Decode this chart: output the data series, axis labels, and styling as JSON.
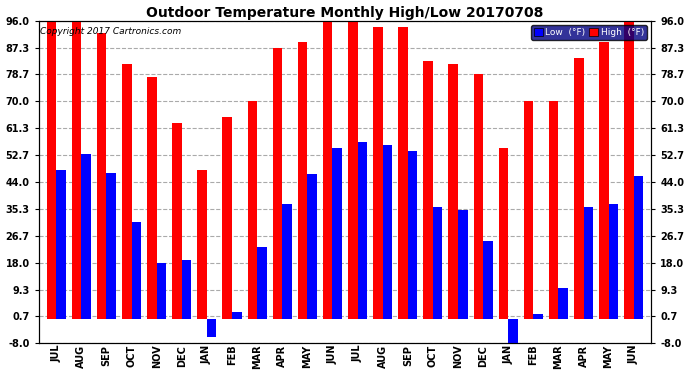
{
  "title": "Outdoor Temperature Monthly High/Low 20170708",
  "copyright": "Copyright 2017 Cartronics.com",
  "legend_low": "Low  (°F)",
  "legend_high": "High  (°F)",
  "months": [
    "JUL",
    "AUG",
    "SEP",
    "OCT",
    "NOV",
    "DEC",
    "JAN",
    "FEB",
    "MAR",
    "APR",
    "MAY",
    "JUN",
    "JUL",
    "AUG",
    "SEP",
    "OCT",
    "NOV",
    "DEC",
    "JAN",
    "FEB",
    "MAR",
    "APR",
    "MAY",
    "JUN"
  ],
  "high": [
    96.0,
    96.0,
    92.0,
    82.0,
    78.0,
    63.0,
    48.0,
    65.0,
    70.0,
    87.3,
    89.0,
    96.0,
    98.0,
    94.0,
    94.0,
    83.0,
    82.0,
    78.7,
    55.0,
    70.0,
    70.0,
    84.0,
    89.0,
    96.0
  ],
  "low": [
    48.0,
    53.0,
    47.0,
    31.0,
    18.0,
    19.0,
    -6.0,
    2.0,
    23.0,
    37.0,
    46.5,
    55.0,
    57.0,
    56.0,
    54.0,
    36.0,
    35.0,
    25.0,
    -10.0,
    1.5,
    10.0,
    36.0,
    37.0,
    46.0
  ],
  "ylim": [
    -8.0,
    96.0
  ],
  "yticks": [
    -8.0,
    0.7,
    9.3,
    18.0,
    26.7,
    35.3,
    44.0,
    52.7,
    61.3,
    70.0,
    78.7,
    87.3,
    96.0
  ],
  "bar_width": 0.38,
  "high_color": "#ff0000",
  "low_color": "#0000ff",
  "bg_color": "#ffffff",
  "plot_bg_color": "#ffffff",
  "grid_color": "#aaaaaa",
  "title_fontsize": 10,
  "tick_fontsize": 7,
  "copyright_fontsize": 6.5
}
